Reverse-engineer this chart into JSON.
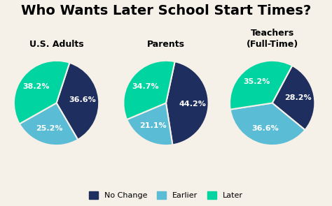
{
  "title": "Who Wants Later School Start Times?",
  "title_fontsize": 14,
  "title_fontweight": "bold",
  "background_color": "#f5f0e8",
  "charts": [
    {
      "label": "U.S. Adults",
      "values": [
        36.6,
        25.2,
        38.2
      ],
      "startangle": 72
    },
    {
      "label": "Parents",
      "values": [
        44.2,
        21.1,
        34.7
      ],
      "startangle": 78
    },
    {
      "label": "Teachers\n(Full-Time)",
      "values": [
        28.2,
        36.6,
        35.2
      ],
      "startangle": 62
    }
  ],
  "categories": [
    "No Change",
    "Earlier",
    "Later"
  ],
  "colors": [
    "#1e2e5e",
    "#5bbcd6",
    "#00d4a0"
  ],
  "legend_fontsize": 8,
  "label_fontsize": 8,
  "subtitle_fontsize": 9
}
